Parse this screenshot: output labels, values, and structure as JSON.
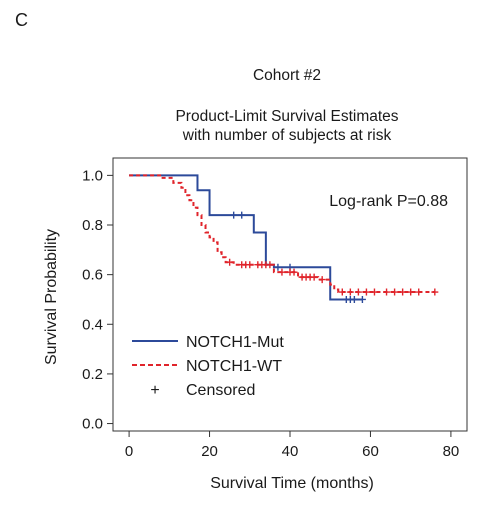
{
  "chart_data": {
    "type": "line",
    "panel_label": "C",
    "title_lines": [
      "Cohort #2",
      "Product-Limit Survival Estimates",
      "with number of subjects at risk"
    ],
    "xlabel": "Survival Time (months)",
    "ylabel": "Survival Probability",
    "xlim": [
      -4,
      84
    ],
    "ylim": [
      -0.03,
      1.07
    ],
    "x_ticks": [
      0,
      20,
      40,
      60,
      80
    ],
    "x_tick_labels": [
      "0",
      "20",
      "40",
      "60",
      "80"
    ],
    "y_ticks": [
      0.0,
      0.2,
      0.4,
      0.6,
      0.8,
      1.0
    ],
    "y_tick_labels": [
      "0.0",
      "0.2",
      "0.4",
      "0.6",
      "0.8",
      "1.0"
    ],
    "annotation": "Log-rank P=0.88",
    "legend": {
      "items": [
        {
          "label": "NOTCH1-Mut",
          "style": "solid",
          "color": "#2c4a9a"
        },
        {
          "label": "NOTCH1-WT",
          "style": "dashed",
          "color": "#e0242b"
        },
        {
          "label": "Censored",
          "style": "marker",
          "color": "#1a1a1a",
          "marker": "+"
        }
      ]
    },
    "series": [
      {
        "name": "NOTCH1-Mut",
        "color": "#2c4a9a",
        "style": "solid",
        "steps": [
          [
            0,
            1.0
          ],
          [
            17,
            0.94
          ],
          [
            20,
            0.84
          ],
          [
            31,
            0.77
          ],
          [
            34,
            0.64
          ],
          [
            36,
            0.63
          ],
          [
            50,
            0.5
          ],
          [
            58,
            0.5
          ]
        ],
        "censored": [
          [
            26,
            0.84
          ],
          [
            28,
            0.84
          ],
          [
            37,
            0.63
          ],
          [
            40,
            0.63
          ],
          [
            54,
            0.5
          ],
          [
            55,
            0.5
          ],
          [
            56,
            0.5
          ],
          [
            58,
            0.5
          ]
        ]
      },
      {
        "name": "NOTCH1-WT",
        "color": "#e0242b",
        "style": "dashed",
        "steps": [
          [
            0,
            1.0
          ],
          [
            8,
            0.99
          ],
          [
            11,
            0.97
          ],
          [
            13,
            0.95
          ],
          [
            14,
            0.92
          ],
          [
            15,
            0.9
          ],
          [
            16,
            0.87
          ],
          [
            17,
            0.84
          ],
          [
            18,
            0.8
          ],
          [
            19,
            0.77
          ],
          [
            20,
            0.75
          ],
          [
            21,
            0.73
          ],
          [
            22,
            0.69
          ],
          [
            23,
            0.67
          ],
          [
            24,
            0.65
          ],
          [
            26,
            0.64
          ],
          [
            36,
            0.61
          ],
          [
            42,
            0.59
          ],
          [
            47,
            0.58
          ],
          [
            50,
            0.56
          ],
          [
            51,
            0.54
          ],
          [
            52,
            0.53
          ],
          [
            76,
            0.53
          ]
        ],
        "censored": [
          [
            25,
            0.65
          ],
          [
            28,
            0.64
          ],
          [
            29,
            0.64
          ],
          [
            30,
            0.64
          ],
          [
            32,
            0.64
          ],
          [
            33,
            0.64
          ],
          [
            34,
            0.64
          ],
          [
            35,
            0.64
          ],
          [
            38,
            0.61
          ],
          [
            40,
            0.61
          ],
          [
            41,
            0.61
          ],
          [
            43,
            0.59
          ],
          [
            44,
            0.59
          ],
          [
            45,
            0.59
          ],
          [
            46,
            0.59
          ],
          [
            48,
            0.58
          ],
          [
            53,
            0.53
          ],
          [
            55,
            0.53
          ],
          [
            57,
            0.53
          ],
          [
            59,
            0.53
          ],
          [
            61,
            0.53
          ],
          [
            64,
            0.53
          ],
          [
            66,
            0.53
          ],
          [
            68,
            0.53
          ],
          [
            70,
            0.53
          ],
          [
            72,
            0.53
          ],
          [
            76,
            0.53
          ]
        ]
      }
    ]
  }
}
